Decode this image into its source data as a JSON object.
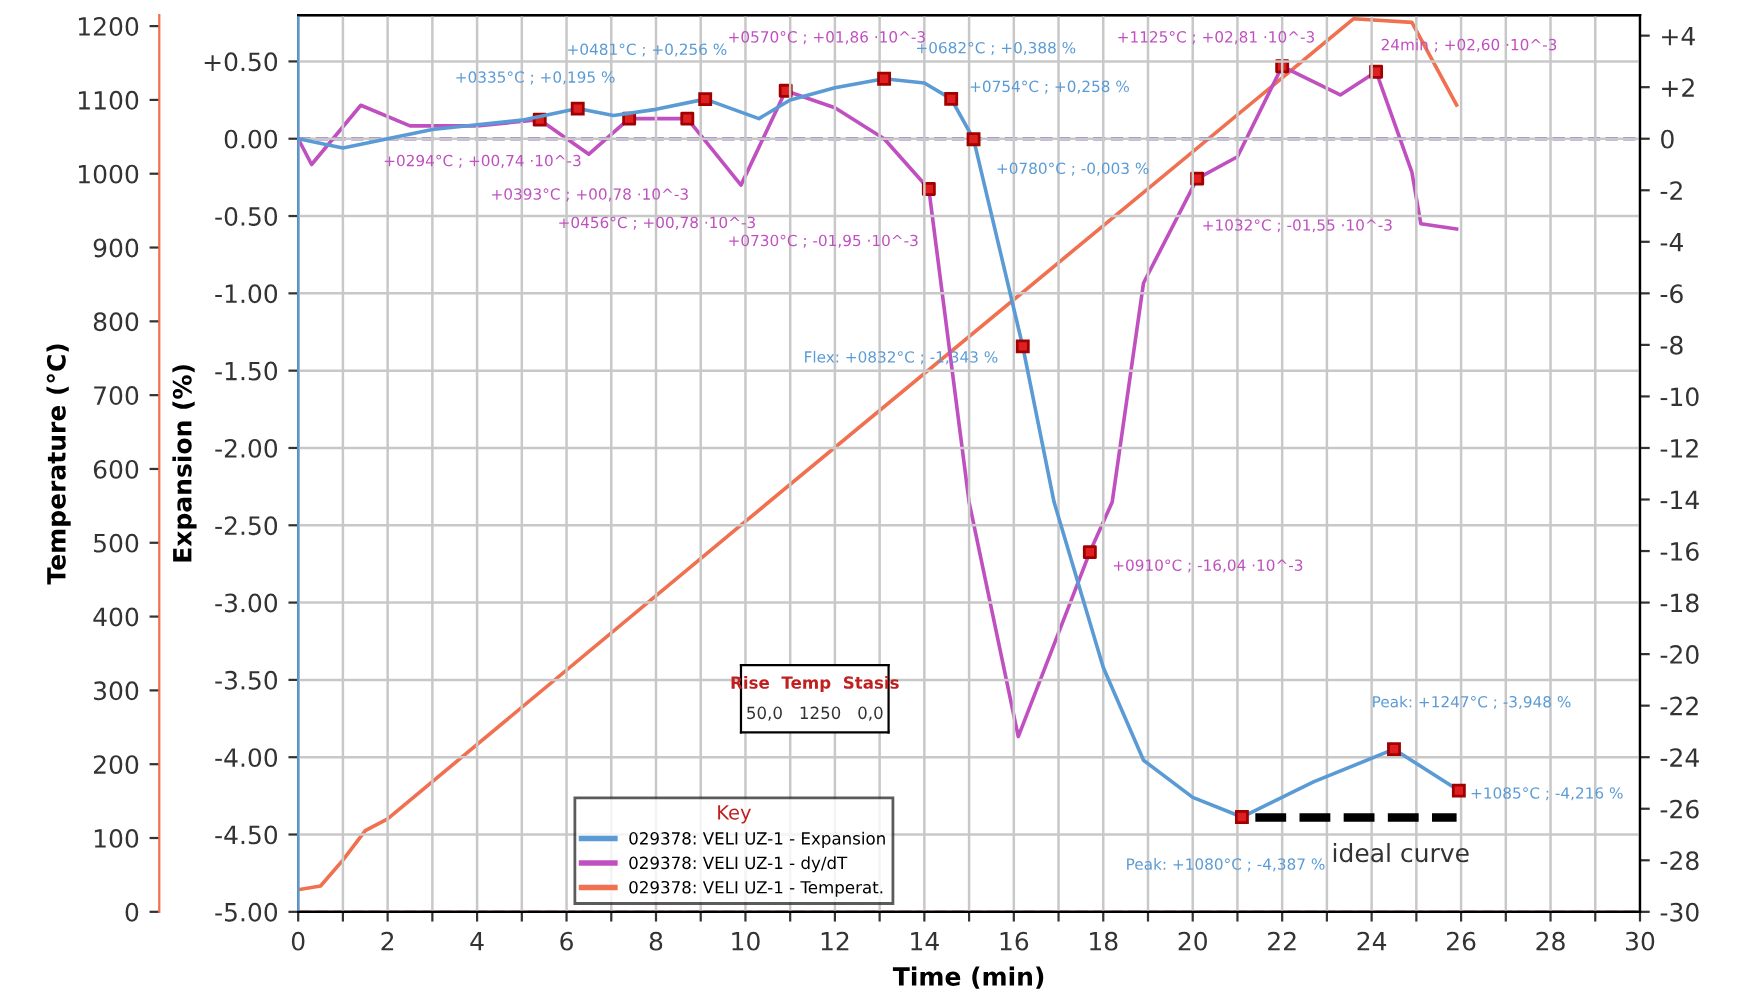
{
  "chart_data": {
    "type": "line",
    "xlabel": "Time (min)",
    "ylabel": "Expansion (%)",
    "y3label": "Temperature (°C)",
    "legend_title": "Key",
    "legend": "bottom left",
    "grid": true,
    "marker": "none",
    "line_style": "solid",
    "xlim": [
      0,
      30
    ],
    "xticks": [
      0,
      {
        "value": 1,
        "label": null
      },
      2,
      {
        "value": 3,
        "label": null
      },
      4,
      {
        "value": 5,
        "label": null
      },
      6,
      {
        "value": 7,
        "label": null
      },
      8,
      {
        "value": 9,
        "label": null
      },
      10,
      {
        "value": 11,
        "label": null
      },
      12,
      {
        "value": 13,
        "label": null
      },
      14,
      {
        "value": 15,
        "label": null
      },
      16,
      {
        "value": 17,
        "label": null
      },
      18,
      {
        "value": 19,
        "label": null
      },
      20,
      {
        "value": 21,
        "label": null
      },
      22,
      {
        "value": 23,
        "label": null
      },
      24,
      {
        "value": 25,
        "label": null
      },
      26,
      {
        "value": 27,
        "label": null
      },
      28,
      {
        "value": 29,
        "label": null
      },
      30
    ],
    "ylim": [
      -5.0,
      0.8
    ],
    "yticks": [
      {
        "value": 0.5,
        "label": "+0.50"
      },
      {
        "value": 0,
        "label": "0.00"
      },
      {
        "value": -0.5,
        "label": "-0.50"
      },
      {
        "value": -1,
        "label": "-1.00"
      },
      {
        "value": -1.5,
        "label": "-1.50"
      },
      {
        "value": -2,
        "label": "-2.00"
      },
      {
        "value": -2.5,
        "label": "-2.50"
      },
      {
        "value": -3,
        "label": "-3.00"
      },
      {
        "value": -3.5,
        "label": "-3.50"
      },
      {
        "value": -4,
        "label": "-4.00"
      },
      {
        "value": -4.5,
        "label": "-4.50"
      },
      {
        "value": -5,
        "label": "-5.00"
      }
    ],
    "y2lim": [
      -30,
      4.8
    ],
    "y2ticks": [
      {
        "value": 4,
        "label": "+4"
      },
      {
        "value": 2,
        "label": "+2"
      },
      0,
      -2,
      -4,
      -6,
      -8,
      -10,
      -12,
      -14,
      -16,
      -18,
      -20,
      -22,
      -24,
      -26,
      -28,
      -30
    ],
    "y3lim": [
      0,
      1215
    ],
    "y3ticks": [
      0,
      100,
      200,
      300,
      400,
      500,
      600,
      700,
      800,
      900,
      1000,
      1100,
      1200
    ],
    "series": [
      {
        "name": "029378: VELI UZ-1 - Expansion",
        "color": "#5b9bd5",
        "axis": "y",
        "x": [
          0,
          1,
          2,
          3,
          4,
          5,
          6.25,
          7.05,
          8,
          9.1,
          10.3,
          11,
          12,
          13.1,
          14,
          14.6,
          15.1,
          16.2,
          16.9,
          18,
          18.9,
          20,
          21.1,
          22.7,
          24.5,
          25.95
        ],
        "values": [
          0,
          -0.06,
          0,
          0.06,
          0.09,
          0.12,
          0.195,
          0.15,
          0.19,
          0.256,
          0.13,
          0.25,
          0.33,
          0.388,
          0.36,
          0.258,
          -0.003,
          -1.343,
          -2.35,
          -3.42,
          -4.02,
          -4.26,
          -4.387,
          -4.16,
          -3.948,
          -4.216
        ]
      },
      {
        "name": "029378: VELI UZ-1 - dy/dT",
        "color": "#c050c0",
        "axis": "y2",
        "x": [
          0,
          0.3,
          1.4,
          2.5,
          4,
          5.4,
          6.5,
          7.4,
          8.7,
          9.9,
          10.9,
          12,
          13.1,
          14.1,
          15.0,
          16.1,
          17.7,
          18.2,
          18.9,
          20.1,
          21,
          22.0,
          23.3,
          24.1,
          24.9,
          25.1,
          25.9
        ],
        "values": [
          0,
          -1.0,
          1.3,
          0.5,
          0.5,
          0.74,
          -0.6,
          0.78,
          0.78,
          -1.8,
          1.86,
          1.2,
          0,
          -1.95,
          -14.1,
          -23.2,
          -16.04,
          -14.1,
          -5.6,
          -1.55,
          -0.7,
          2.81,
          1.7,
          2.6,
          -1.3,
          -3.3,
          -3.5
        ]
      },
      {
        "name": "029378: VELI UZ-1 - Temperat.",
        "color": "#f07050",
        "axis": "y3",
        "x": [
          0,
          0.5,
          1,
          1.5,
          2,
          10,
          23.6,
          24.9,
          25.9
        ],
        "values": [
          30,
          35,
          70,
          110,
          126,
          529,
          1210,
          1205,
          1093
        ]
      },
      {
        "color": "#000000",
        "axis": "y",
        "line_style": "dashed",
        "x": [
          21.4,
          25.9
        ],
        "values": [
          -4.39,
          -4.39
        ]
      },
      {
        "type": "scatter",
        "color": "#e02020",
        "axis": "y2",
        "marker": "square",
        "x": [
          5.4,
          7.4,
          8.7,
          10.9,
          14.1,
          17.7,
          20.1,
          22.0,
          24.1
        ],
        "values": [
          0.74,
          0.78,
          0.78,
          1.86,
          -1.95,
          -16.04,
          -1.55,
          2.81,
          2.6
        ]
      }
    ],
    "ref_lines": [
      {
        "axis": "y2",
        "value": 0,
        "color": "#9070d0",
        "line_style": "dashed"
      },
      {
        "axis": "y3",
        "value": 0,
        "color": "#f07050",
        "line_style": "dashed"
      }
    ],
    "annotations": [
      {
        "text": "+0335°C ; +0,195 %",
        "x": 6.25,
        "y": 0.195
      },
      {
        "text": "+0481°C ; +0,256 %",
        "x": 9.1,
        "y": 0.256
      },
      {
        "text": "+0682°C ; +0,388 %",
        "x": 13.1,
        "y": 0.388
      },
      {
        "text": "+0754°C ; +0,258 %",
        "x": 14.6,
        "y": 0.258
      },
      {
        "text": "+0780°C ; -0,003 %",
        "x": 15.1,
        "y": -0.003
      },
      {
        "text": "Flex: +0832°C ; -1,343 %",
        "x": 16.2,
        "y": -1.343
      },
      {
        "text": "Peak: +1080°C ; -4,387 %",
        "x": 21.1,
        "y": -4.387
      },
      {
        "text": "Peak: +1247°C ; -3,948 %",
        "x": 24.5,
        "y": -3.948
      },
      {
        "text": "+1085°C ; -4,216 %",
        "x": 25.95,
        "y": -4.216
      },
      "+0294°C ; +00,74 ·10^-3",
      "+0393°C ; +00,78 ·10^-3",
      "+0456°C ; +00,78 ·10^-3",
      "+0570°C ; +01,86 ·10^-3",
      "+0730°C ; -01,95 ·10^-3",
      "+0910°C ; -16,04 ·10^-3",
      "+1032°C ; -01,55 ·10^-3",
      "+1125°C ; +02,81 ·10^-3",
      "24min ; +02,60 ·10^-3",
      {
        "text": "ideal curve",
        "x": 23.6,
        "y": -4.39
      },
      "Rise  Temp  Stasis",
      "50,0   1250   0,0"
    ]
  }
}
